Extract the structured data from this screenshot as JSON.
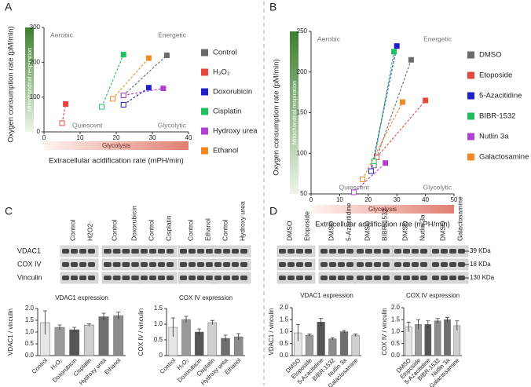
{
  "panel_labels": [
    "A",
    "B",
    "C",
    "D"
  ],
  "chart_data": [
    {
      "type": "scatter",
      "ylabel": "Oxygen consumption rate (pM/min)",
      "xlabel": "Extracellular acidification rate (mPH/min)",
      "ygradient_label": "Mitochondrial respiration",
      "xgradient_label": "Glycolysis",
      "annotations": [
        "Aerobic",
        "Energetic",
        "Quiescent",
        "Glycolytic"
      ],
      "xlim": [
        0,
        40
      ],
      "xticks": [
        0,
        10,
        20,
        30,
        40
      ],
      "ylim": [
        0,
        300
      ],
      "yticks": [
        0,
        100,
        200,
        300
      ],
      "series": [
        {
          "name": "Control",
          "color": "#6b6b6b",
          "x": [
            22,
            34
          ],
          "values": [
            105,
            220
          ]
        },
        {
          "name": "H₂O₂",
          "color": "#e8473f",
          "x": [
            5,
            6
          ],
          "values": [
            25,
            80
          ]
        },
        {
          "name": "Doxorubicin",
          "color": "#2020c8",
          "x": [
            22,
            29
          ],
          "values": [
            78,
            127
          ]
        },
        {
          "name": "Cisplatin",
          "color": "#1fbf5f",
          "x": [
            16,
            22
          ],
          "values": [
            72,
            222
          ]
        },
        {
          "name": "Hydroxy urea",
          "color": "#b040d0",
          "x": [
            22,
            33
          ],
          "values": [
            105,
            125
          ]
        },
        {
          "name": "Ethanol",
          "color": "#f08a24",
          "x": [
            19,
            29
          ],
          "values": [
            95,
            212
          ]
        }
      ]
    },
    {
      "type": "scatter",
      "ylabel": "Oxygen consumption rate (pM/min)",
      "xlabel": "Extracellular acidification rate (mPH/min)",
      "ygradient_label": "Mitochondrial respiration",
      "xgradient_label": "Glycolysis",
      "annotations": [
        "Aerobic",
        "Energetic",
        "Quiescent",
        "Glycolytic"
      ],
      "xlim": [
        0,
        50
      ],
      "xticks": [
        0,
        10,
        20,
        30,
        40,
        50
      ],
      "ylim": [
        50,
        250
      ],
      "yticks": [
        50,
        100,
        150,
        200,
        250
      ],
      "series": [
        {
          "name": "DMSO",
          "color": "#6b6b6b",
          "x": [
            22,
            35
          ],
          "values": [
            85,
            215
          ]
        },
        {
          "name": "Etoposide",
          "color": "#e8473f",
          "x": [
            23,
            40
          ],
          "values": [
            95,
            165
          ]
        },
        {
          "name": "5-Azacitidine",
          "color": "#2020c8",
          "x": [
            21,
            30
          ],
          "values": [
            78,
            232
          ]
        },
        {
          "name": "BIBR-1532",
          "color": "#1fbf5f",
          "x": [
            22,
            29
          ],
          "values": [
            90,
            225
          ]
        },
        {
          "name": "Nutlin 3a",
          "color": "#b040d0",
          "x": [
            15,
            26
          ],
          "values": [
            52,
            88
          ]
        },
        {
          "name": "Galactosamine",
          "color": "#f08a24",
          "x": [
            18,
            32
          ],
          "values": [
            68,
            163
          ]
        }
      ]
    },
    {
      "type": "bar",
      "title": "VDAC1 expression",
      "ylabel": "VDAC1 / vinculin",
      "categories": [
        "Control",
        "H₂O₂",
        "Doxorubicin",
        "Cisplatin",
        "Hydroxy urea",
        "Ethanol"
      ],
      "values": [
        1.4,
        1.2,
        1.1,
        1.3,
        1.65,
        1.7
      ],
      "errors": [
        0.5,
        0.1,
        0.1,
        0.05,
        0.15,
        0.15
      ],
      "colors": [
        "#e6e6e6",
        "#9a9a9a",
        "#555555",
        "#cfcfcf",
        "#6e6e6e",
        "#8c8c8c"
      ],
      "ylim": [
        0,
        2
      ],
      "yticks": [
        {
          "value": 0,
          "label": "0.0"
        },
        0.5,
        {
          "value": 1,
          "label": "1.0"
        },
        1.5,
        {
          "value": 2,
          "label": "2.0"
        }
      ]
    },
    {
      "type": "bar",
      "title": "COX IV expression",
      "ylabel": "COX IV / vinculin",
      "categories": [
        "Control",
        "H₂O₂",
        "Doxorubicin",
        "Cisplatin",
        "Hydroxy urea",
        "Ethanol"
      ],
      "values": [
        0.9,
        1.15,
        0.75,
        1.05,
        0.55,
        0.6
      ],
      "errors": [
        0.3,
        0.1,
        0.1,
        0.07,
        0.1,
        0.1
      ],
      "colors": [
        "#e6e6e6",
        "#9a9a9a",
        "#555555",
        "#cfcfcf",
        "#6e6e6e",
        "#8c8c8c"
      ],
      "ylim": [
        0,
        1.5
      ],
      "yticks": [
        0,
        0.5,
        {
          "value": 1,
          "label": "1.0"
        },
        1.5
      ]
    },
    {
      "type": "bar",
      "title": "VDAC1 expression",
      "ylabel": "VDAC1 / vinculin",
      "categories": [
        "DMSO",
        "Etoposide",
        "5-Azacitidine",
        "BIBR-1532",
        "Nutlin 3a",
        "Galactosamine"
      ],
      "values": [
        0.95,
        0.85,
        1.4,
        0.7,
        1.0,
        0.85
      ],
      "errors": [
        0.35,
        0.05,
        0.15,
        0.05,
        0.05,
        0.05
      ],
      "colors": [
        "#e6e6e6",
        "#9a9a9a",
        "#555555",
        "#8c8c8c",
        "#6e6e6e",
        "#cfcfcf"
      ],
      "ylim": [
        0,
        2
      ],
      "yticks": [
        {
          "value": 0,
          "label": "0.0"
        },
        0.5,
        {
          "value": 1,
          "label": "1.0"
        },
        1.5,
        {
          "value": 2,
          "label": "2.0"
        }
      ]
    },
    {
      "type": "bar",
      "title": "COX IV expression",
      "ylabel": "COX IV / vinculin",
      "categories": [
        "DMSO",
        "Etoposide",
        "5-Azacitidine",
        "BIBR-1532",
        "Nutlin 3a",
        "Galactosamine"
      ],
      "values": [
        1.2,
        1.3,
        1.3,
        1.45,
        1.5,
        1.25
      ],
      "errors": [
        0.2,
        0.2,
        0.15,
        0.1,
        0.1,
        0.2
      ],
      "colors": [
        "#e6e6e6",
        "#9a9a9a",
        "#555555",
        "#8c8c8c",
        "#6e6e6e",
        "#cfcfcf"
      ],
      "ylim": [
        0,
        2
      ],
      "yticks": [
        {
          "value": 0,
          "label": "0.0"
        },
        0.5,
        {
          "value": 1,
          "label": "1.0"
        },
        1.5,
        {
          "value": 2,
          "label": "2.0"
        }
      ]
    }
  ],
  "blots": [
    {
      "lanes": [
        "Control",
        "H2O2",
        "Control",
        "Doxorubicin",
        "Control",
        "Cisplatin",
        "Control",
        "Ethanol",
        "Control",
        "Hydroxy urea"
      ],
      "rows": [
        "VDAC1",
        "COX IV",
        "Vinculin"
      ]
    },
    {
      "lanes": [
        "DMSO",
        "Etoposide",
        "DMSO",
        "5-Azacitidine",
        "DMSO",
        "BIBR-1532",
        "DMSO",
        "Nutlin 3a",
        "DMSO",
        "Galactosamine"
      ],
      "markers": [
        "39 KDa",
        "18 KDa",
        "130 KDa"
      ]
    }
  ]
}
